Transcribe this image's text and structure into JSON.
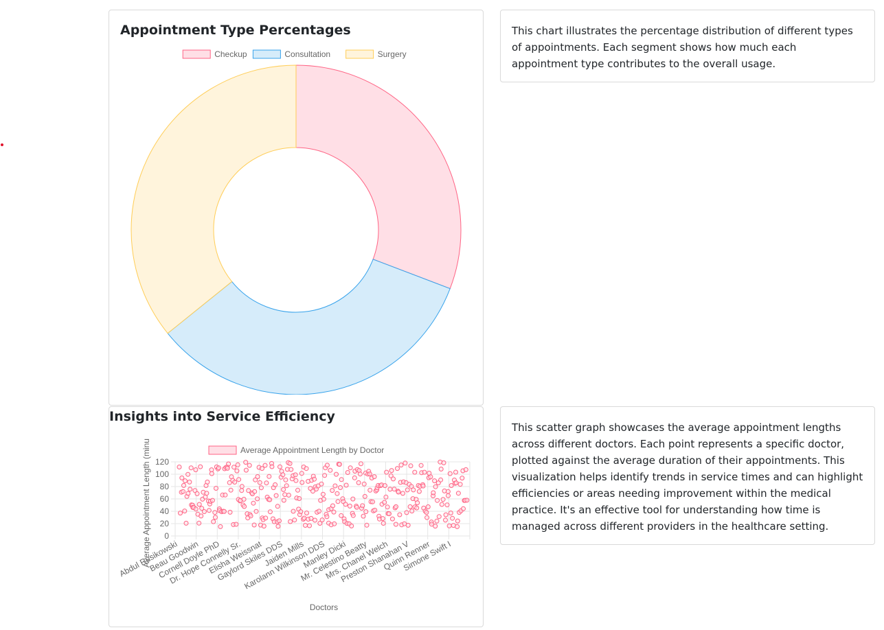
{
  "charts": {
    "donut": {
      "title": "Appointment Type Percentages",
      "description": "This chart illustrates the percentage distribution of different types of appointments. Each segment shows how much each appointment type contributes to the overall usage."
    },
    "scatter": {
      "title": "Insights into Service Efficiency",
      "description": "This scatter graph showcases the average appointment lengths across different doctors. Each point represents a specific doctor, plotted against the average duration of their appointments. This visualization helps identify trends in service times and can highlight efficiencies or areas needing improvement within the medical practice. It's an effective tool for understanding how time is managed across different providers in the healthcare setting."
    }
  },
  "chart_data": [
    {
      "type": "pie",
      "variant": "doughnut",
      "categories": [
        "Checkup",
        "Consultation",
        "Surgery"
      ],
      "values": [
        30.8,
        33.4,
        35.8
      ],
      "unit": "%",
      "colors": {
        "fills": [
          "#ffdfe6",
          "#d6ecfa",
          "#fff4dc"
        ],
        "borders": [
          "#ff6384",
          "#36a2eb",
          "#ffcd56"
        ]
      },
      "legend": "top"
    },
    {
      "type": "scatter",
      "series": [
        {
          "name": "Average Appointment Length by Doctor",
          "points_per_category": 13,
          "point_count": 364,
          "seed": 7
        }
      ],
      "x_ticks": [
        "Abdul Rusikowski",
        "Beau Goodwin",
        "Cornell Doyle PhD",
        "Dr. Hope Connelly Sr.",
        "Elisha Weissnat",
        "Gaylord Skiles DDS",
        "Jaiden Mills",
        "Karolann Wilkinson DDS",
        "Manley Dicki",
        "Mr. Celestino Beatty",
        "Mrs. Chanel Welch",
        "Preston Shanahan V",
        "Quinn Renner",
        "Simone Swift I"
      ],
      "xlabel": "Doctors",
      "ylabel": "Average Appointment Length (minu",
      "ylim": [
        0,
        120
      ],
      "y_ticks": [
        0,
        20,
        40,
        60,
        80,
        100,
        120
      ],
      "y_min_value": 15,
      "y_max_value": 120,
      "grid": true,
      "legend": "top",
      "colors": {
        "point_border": "#ff6384",
        "point_fill": "#ffdfe6"
      }
    }
  ]
}
